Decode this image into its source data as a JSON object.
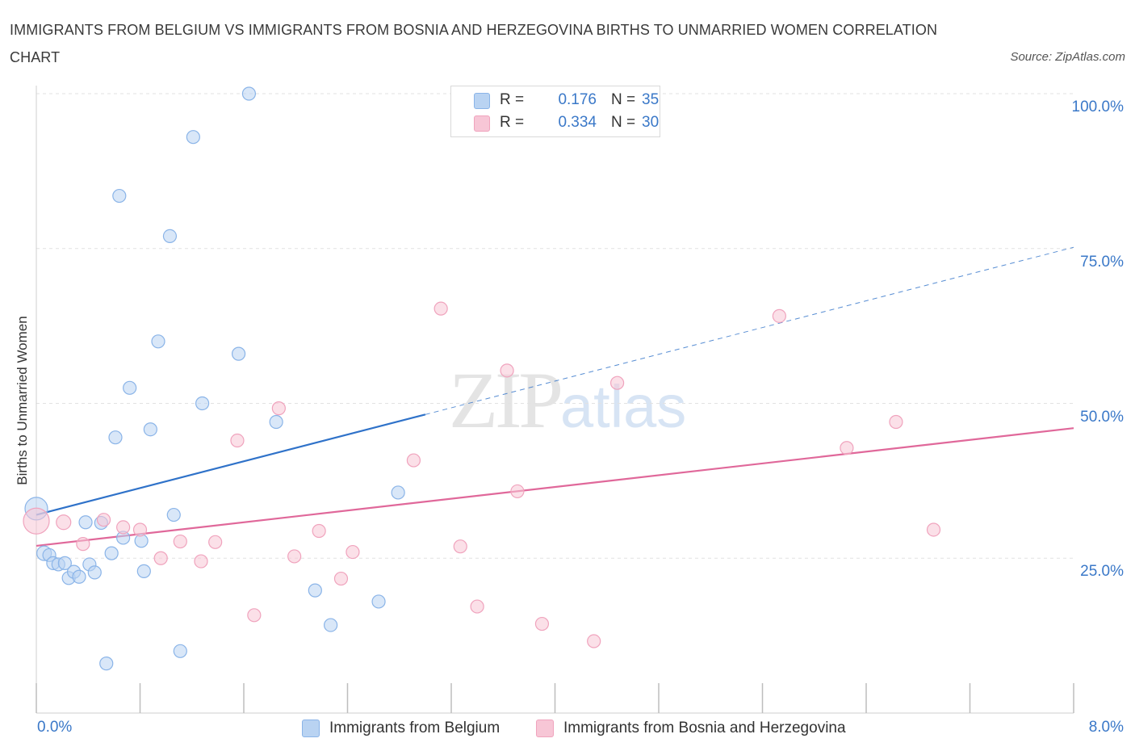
{
  "chart_data": {
    "type": "scatter",
    "title": "IMMIGRANTS FROM BELGIUM VS IMMIGRANTS FROM BOSNIA AND HERZEGOVINA BIRTHS TO UNMARRIED WOMEN CORRELATION CHART",
    "source": "Source: ZipAtlas.com",
    "xlabel": "",
    "ylabel": "Births to Unmarried Women",
    "xlim": [
      0,
      8
    ],
    "ylim": [
      0,
      100
    ],
    "x_tick_labels": [
      "0.0%",
      "8.0%"
    ],
    "y_ticks": [
      25,
      50,
      75,
      100
    ],
    "y_tick_labels": [
      "25.0%",
      "50.0%",
      "75.0%",
      "100.0%"
    ],
    "grid": true,
    "watermark": {
      "zip": "ZIP",
      "atlas": "atlas"
    },
    "legend": {
      "r_label": "R =",
      "n_label": "N =",
      "entries": [
        {
          "r": "0.176",
          "n": "35"
        },
        {
          "r": "0.334",
          "n": "30"
        }
      ]
    },
    "series": [
      {
        "name": "Immigrants from Belgium",
        "color": "#8ab4e8",
        "fill": "#b9d3f2",
        "line_color": "#2f72c9",
        "trend": {
          "x0": 0.0,
          "y0": 32.0,
          "x1": 3.0,
          "y1": 48.2,
          "dashed_to_x": 8.0,
          "dashed_to_y": 75.2
        },
        "points": [
          {
            "x": 0.0,
            "y": 33.0,
            "s": 14
          },
          {
            "x": 0.06,
            "y": 25.8,
            "s": 9
          },
          {
            "x": 0.1,
            "y": 25.5,
            "s": 8
          },
          {
            "x": 0.13,
            "y": 24.2,
            "s": 8
          },
          {
            "x": 0.17,
            "y": 24.0,
            "s": 8
          },
          {
            "x": 0.22,
            "y": 24.2,
            "s": 8
          },
          {
            "x": 0.25,
            "y": 21.8,
            "s": 8
          },
          {
            "x": 0.29,
            "y": 22.8,
            "s": 8
          },
          {
            "x": 0.33,
            "y": 22.0,
            "s": 8
          },
          {
            "x": 0.38,
            "y": 30.8,
            "s": 8
          },
          {
            "x": 0.41,
            "y": 24.0,
            "s": 8
          },
          {
            "x": 0.45,
            "y": 22.7,
            "s": 8
          },
          {
            "x": 0.5,
            "y": 30.7,
            "s": 8
          },
          {
            "x": 0.54,
            "y": 8.0,
            "s": 8
          },
          {
            "x": 0.58,
            "y": 25.8,
            "s": 8
          },
          {
            "x": 0.61,
            "y": 44.5,
            "s": 8
          },
          {
            "x": 0.64,
            "y": 83.5,
            "s": 8
          },
          {
            "x": 0.67,
            "y": 28.3,
            "s": 8
          },
          {
            "x": 0.72,
            "y": 52.5,
            "s": 8
          },
          {
            "x": 0.81,
            "y": 27.8,
            "s": 8
          },
          {
            "x": 0.83,
            "y": 22.9,
            "s": 8
          },
          {
            "x": 0.88,
            "y": 45.8,
            "s": 8
          },
          {
            "x": 0.94,
            "y": 60.0,
            "s": 8
          },
          {
            "x": 1.03,
            "y": 77.0,
            "s": 8
          },
          {
            "x": 1.06,
            "y": 32.0,
            "s": 8
          },
          {
            "x": 1.11,
            "y": 10.0,
            "s": 8
          },
          {
            "x": 1.21,
            "y": 93.0,
            "s": 8
          },
          {
            "x": 1.28,
            "y": 50.0,
            "s": 8
          },
          {
            "x": 1.56,
            "y": 58.0,
            "s": 8
          },
          {
            "x": 1.64,
            "y": 100.0,
            "s": 8
          },
          {
            "x": 1.85,
            "y": 47.0,
            "s": 8
          },
          {
            "x": 2.15,
            "y": 19.8,
            "s": 8
          },
          {
            "x": 2.27,
            "y": 14.2,
            "s": 8
          },
          {
            "x": 2.64,
            "y": 18.0,
            "s": 8
          },
          {
            "x": 2.79,
            "y": 35.6,
            "s": 8
          }
        ]
      },
      {
        "name": "Immigrants from Bosnia and Herzegovina",
        "color": "#f0a3bd",
        "fill": "#f7c6d6",
        "line_color": "#e0689a",
        "trend": {
          "x0": 0.0,
          "y0": 27.0,
          "x1": 8.0,
          "y1": 46.0
        },
        "points": [
          {
            "x": 0.0,
            "y": 31.0,
            "s": 16
          },
          {
            "x": 0.21,
            "y": 30.8,
            "s": 9
          },
          {
            "x": 0.36,
            "y": 27.3,
            "s": 8
          },
          {
            "x": 0.52,
            "y": 31.2,
            "s": 8
          },
          {
            "x": 0.67,
            "y": 30.0,
            "s": 8
          },
          {
            "x": 0.8,
            "y": 29.6,
            "s": 8
          },
          {
            "x": 0.96,
            "y": 25.0,
            "s": 8
          },
          {
            "x": 1.11,
            "y": 27.7,
            "s": 8
          },
          {
            "x": 1.27,
            "y": 24.5,
            "s": 8
          },
          {
            "x": 1.38,
            "y": 27.6,
            "s": 8
          },
          {
            "x": 1.55,
            "y": 44.0,
            "s": 8
          },
          {
            "x": 1.68,
            "y": 15.8,
            "s": 8
          },
          {
            "x": 1.87,
            "y": 49.2,
            "s": 8
          },
          {
            "x": 1.99,
            "y": 25.3,
            "s": 8
          },
          {
            "x": 2.18,
            "y": 29.4,
            "s": 8
          },
          {
            "x": 2.35,
            "y": 21.7,
            "s": 8
          },
          {
            "x": 2.44,
            "y": 26.0,
            "s": 8
          },
          {
            "x": 2.91,
            "y": 40.8,
            "s": 8
          },
          {
            "x": 3.12,
            "y": 65.3,
            "s": 8
          },
          {
            "x": 3.27,
            "y": 26.9,
            "s": 8
          },
          {
            "x": 3.4,
            "y": 17.2,
            "s": 8
          },
          {
            "x": 3.63,
            "y": 55.3,
            "s": 8
          },
          {
            "x": 3.71,
            "y": 35.8,
            "s": 8
          },
          {
            "x": 3.9,
            "y": 14.4,
            "s": 8
          },
          {
            "x": 4.3,
            "y": 11.6,
            "s": 8
          },
          {
            "x": 4.48,
            "y": 53.3,
            "s": 8
          },
          {
            "x": 5.73,
            "y": 64.1,
            "s": 8
          },
          {
            "x": 6.25,
            "y": 42.8,
            "s": 8
          },
          {
            "x": 6.63,
            "y": 47.0,
            "s": 8
          },
          {
            "x": 6.92,
            "y": 29.6,
            "s": 8
          }
        ]
      }
    ]
  }
}
